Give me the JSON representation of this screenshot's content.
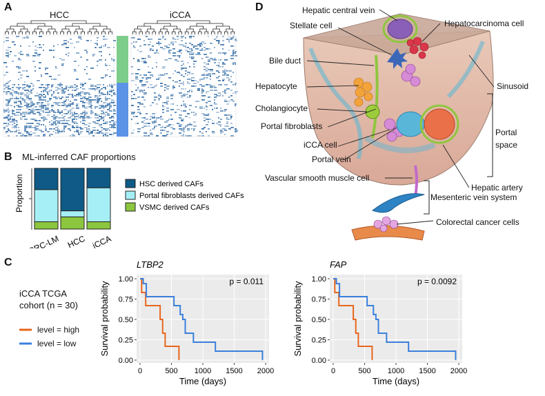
{
  "panel_a": {
    "letter": "A",
    "groups": [
      "HCC",
      "iCCA"
    ],
    "colors": {
      "top_cluster": "#7ccd8a",
      "bottom_cluster": "#5b93e6",
      "cell": "#1f5f9e"
    }
  },
  "panel_b": {
    "letter": "B",
    "colors": {
      "hsc": "#0f5a86",
      "portal": "#a6eff7",
      "vsmc": "#8cc63f"
    }
  },
  "panel_c": {
    "letter": "C",
    "cohort_line1": "iCCA TCGA",
    "cohort_line2": "cohort (n = 30)",
    "legend": [
      {
        "label": "level = high",
        "color": "#e8661c"
      },
      {
        "label": "level = low",
        "color": "#3a7fdc"
      }
    ]
  },
  "panel_d": {
    "letter": "D",
    "labels": {
      "central_vein": "Hepatic central vein",
      "stellate": "Stellate cell",
      "hepatocarcinoma": "Hepatocarcinoma cell",
      "bile_duct": "Bile duct",
      "hepatocyte": "Hepatocyte",
      "sinusoid": "Sinusoid",
      "cholangiocyte": "Cholangiocyte",
      "portal_fibroblasts": "Portal fibroblasts",
      "icca_cell": "iCCA cell",
      "portal_space_1": "Portal",
      "portal_space_2": "space",
      "portal_vein": "Portal vein",
      "vsmc": "Vascular smooth muscle cell",
      "hepatic_artery": "Hepatic artery",
      "mesenteric": "Mesenteric vein system",
      "colorectal": "Colorectal cancer cells"
    }
  },
  "chart_data": [
    {
      "type": "bar",
      "stacked": true,
      "title": "ML-inferred CAF proportions",
      "xlabel": "",
      "ylabel": "Proportion",
      "ylim": [
        0,
        1
      ],
      "categories": [
        "CRC-LM",
        "HCC",
        "iCCA"
      ],
      "series": [
        {
          "name": "VSMC derived CAFs",
          "values": [
            0.12,
            0.2,
            0.12
          ]
        },
        {
          "name": "Portal fibroblasts derived CAFs",
          "values": [
            0.53,
            0.1,
            0.56
          ]
        },
        {
          "name": "HSC derived CAFs",
          "values": [
            0.35,
            0.7,
            0.32
          ]
        }
      ]
    },
    {
      "type": "line",
      "step": true,
      "title": "LTBP2",
      "xlabel": "Time (days)",
      "ylabel": "Survival probability",
      "xlim": [
        0,
        2000
      ],
      "ylim": [
        0,
        1
      ],
      "xticks": [
        0,
        500,
        1000,
        1500,
        2000
      ],
      "yticks": [
        "0.00",
        "0.25",
        "0.50",
        "0.75",
        "1.00"
      ],
      "annotation": "p = 0.011",
      "series": [
        {
          "name": "level = high",
          "x": [
            0,
            25,
            90,
            320,
            360,
            400,
            450,
            620
          ],
          "y": [
            1.0,
            0.83,
            0.67,
            0.5,
            0.33,
            0.17,
            0.17,
            0.0
          ]
        },
        {
          "name": "level = low",
          "x": [
            0,
            50,
            100,
            540,
            640,
            680,
            720,
            850,
            1200,
            1950
          ],
          "y": [
            1.0,
            0.94,
            0.78,
            0.67,
            0.56,
            0.5,
            0.33,
            0.22,
            0.11,
            0.0
          ]
        }
      ]
    },
    {
      "type": "line",
      "step": true,
      "title": "FAP",
      "xlabel": "Time (days)",
      "ylabel": "Survival probability",
      "xlim": [
        0,
        2000
      ],
      "ylim": [
        0,
        1
      ],
      "xticks": [
        0,
        500,
        1000,
        1500,
        2000
      ],
      "yticks": [
        "0.00",
        "0.25",
        "0.50",
        "0.75",
        "1.00"
      ],
      "annotation": "p = 0.0092",
      "series": [
        {
          "name": "level = high",
          "x": [
            0,
            25,
            90,
            320,
            360,
            400,
            450,
            620
          ],
          "y": [
            1.0,
            0.83,
            0.67,
            0.5,
            0.33,
            0.17,
            0.17,
            0.0
          ]
        },
        {
          "name": "level = low",
          "x": [
            0,
            50,
            100,
            540,
            640,
            680,
            720,
            850,
            1200,
            1950
          ],
          "y": [
            1.0,
            0.94,
            0.78,
            0.67,
            0.56,
            0.5,
            0.33,
            0.22,
            0.11,
            0.0
          ]
        }
      ]
    }
  ]
}
